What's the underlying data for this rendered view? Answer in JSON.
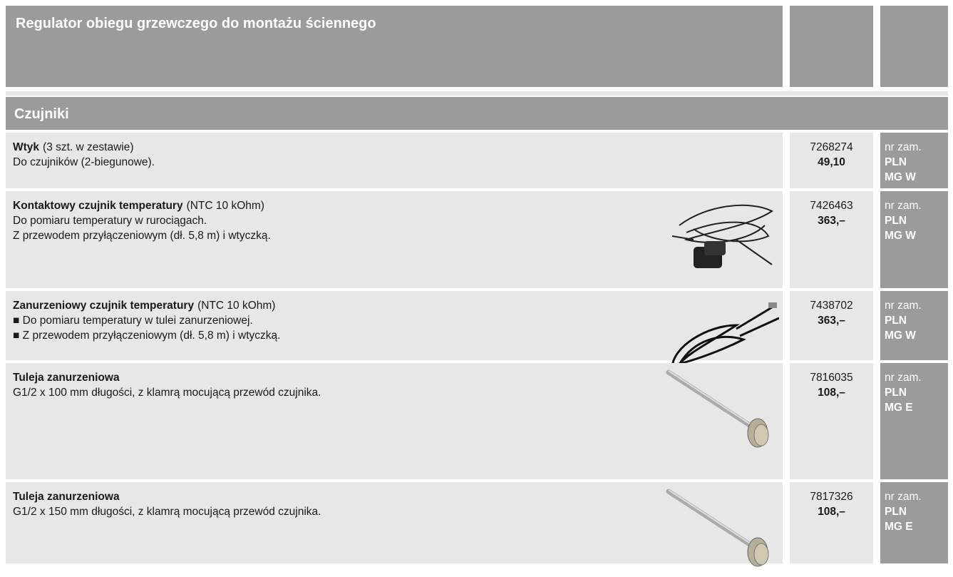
{
  "header": {
    "title": "Regulator obiegu grzewczego do montażu ściennego"
  },
  "section": {
    "title": "Czujniki"
  },
  "rows": [
    {
      "name": "Wtyk",
      "spec": "(3 szt. w zestawie)",
      "lines": [
        "Do czujników (2-biegunowe)."
      ],
      "code": "7268274",
      "price": "49,10",
      "labels": [
        "nr zam.",
        "PLN",
        "MG W"
      ]
    },
    {
      "name": "Kontaktowy czujnik temperatury",
      "spec": "(NTC 10 kOhm)",
      "lines": [
        "Do pomiaru temperatury w rurociągach.",
        "Z przewodem przyłączeniowym (dł. 5,8 m) i wtyczką."
      ],
      "code": "7426463",
      "price": "363,–",
      "labels": [
        "nr zam.",
        "PLN",
        "MG W"
      ]
    },
    {
      "name": "Zanurzeniowy czujnik temperatury",
      "spec": "(NTC 10 kOhm)",
      "lines": [
        "■ Do pomiaru temperatury w tulei zanurzeniowej.",
        "■ Z przewodem przyłączeniowym (dł. 5,8 m) i wtyczką."
      ],
      "code": "7438702",
      "price": "363,–",
      "labels": [
        "nr zam.",
        "PLN",
        "MG W"
      ]
    },
    {
      "name": "Tuleja zanurzeniowa",
      "spec": null,
      "lines": [
        "G1/2 x 100 mm długości, z klamrą mocującą przewód czujnika."
      ],
      "code": "7816035",
      "price": "108,–",
      "labels": [
        "nr zam.",
        "PLN",
        "MG E"
      ]
    },
    {
      "name": "Tuleja zanurzeniowa",
      "spec": null,
      "lines": [
        "G1/2 x 150 mm długości, z klamrą mocującą przewód czujnika."
      ],
      "code": "7817326",
      "price": "108,–",
      "labels": [
        "nr zam.",
        "PLN",
        "MG E"
      ]
    }
  ]
}
